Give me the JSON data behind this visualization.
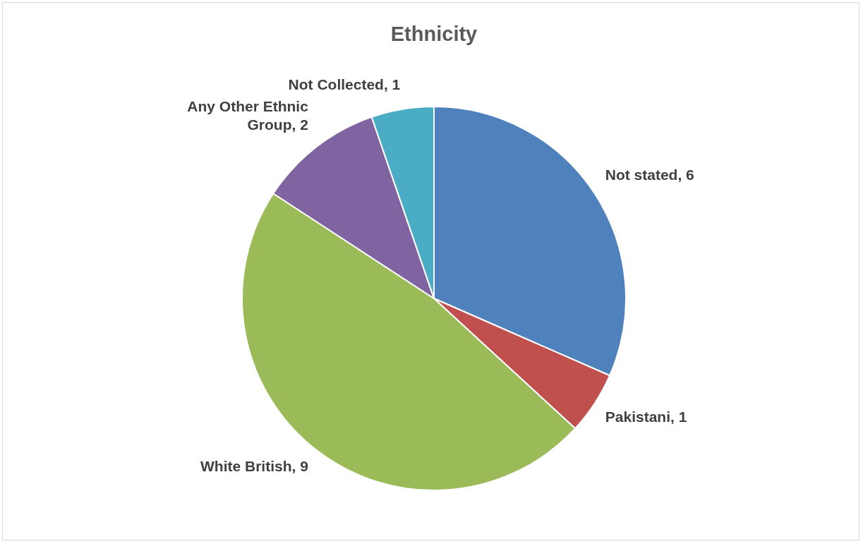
{
  "chart_data": {
    "type": "pie",
    "title": "Ethnicity",
    "categories": [
      "Not stated",
      "Pakistani",
      "White British",
      "Any Other Ethnic Group",
      "Not Collected"
    ],
    "values": [
      6,
      1,
      9,
      2,
      1
    ],
    "colors": [
      "#4f81bd",
      "#c0504d",
      "#9bbb59",
      "#8064a2",
      "#4bacc6"
    ],
    "value_labels": [
      ", 6",
      ", 1",
      ", 9",
      ", 2",
      ", 1"
    ],
    "legend": false
  }
}
